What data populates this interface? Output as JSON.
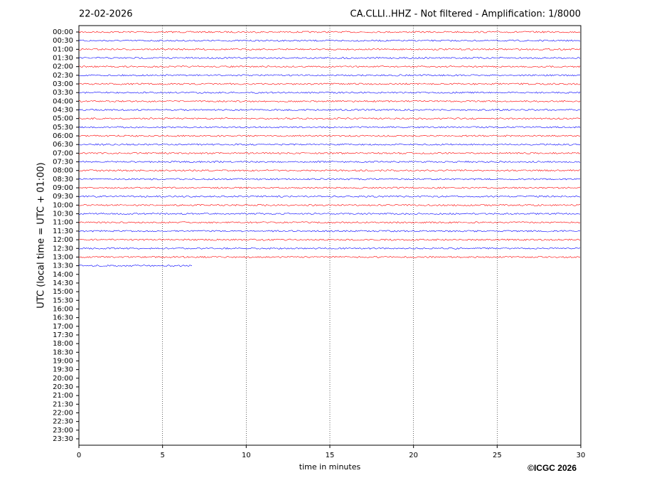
{
  "chart_data": {
    "type": "helicorder",
    "date": "22-02-2026",
    "title": "CA.CLLI..HHZ - Not filtered - Amplification: 1/8000",
    "y_label": "UTC (local time = UTC + 01:00)",
    "x_label": "time in minutes",
    "copyright": "©ICGC 2026",
    "categories": [
      "00:00",
      "00:30",
      "01:00",
      "01:30",
      "02:00",
      "02:30",
      "03:00",
      "03:30",
      "04:00",
      "04:30",
      "05:00",
      "05:30",
      "06:00",
      "06:30",
      "07:00",
      "07:30",
      "08:00",
      "08:30",
      "09:00",
      "09:30",
      "10:00",
      "10:30",
      "11:00",
      "11:30",
      "12:00",
      "12:30",
      "13:00",
      "13:30",
      "14:00",
      "14:30",
      "15:00",
      "15:30",
      "16:00",
      "16:30",
      "17:00",
      "17:30",
      "18:00",
      "18:30",
      "19:00",
      "19:30",
      "20:00",
      "20:30",
      "21:00",
      "21:30",
      "22:00",
      "22:30",
      "23:00",
      "23:30"
    ],
    "values": [
      30,
      30,
      30,
      30,
      30,
      30,
      30,
      30,
      30,
      30,
      30,
      30,
      30,
      30,
      30,
      30,
      30,
      30,
      30,
      30,
      30,
      30,
      30,
      30,
      30,
      30,
      30,
      6.8,
      null,
      null,
      null,
      null,
      null,
      null,
      null,
      null,
      null,
      null,
      null,
      null,
      null,
      null,
      null,
      null,
      null,
      null,
      null,
      null
    ],
    "colors": [
      "#ff0000",
      "#0000ff"
    ],
    "xlim": [
      0,
      30
    ],
    "xticks": [
      0,
      5,
      10,
      15,
      20,
      25,
      30
    ],
    "grid": true
  }
}
